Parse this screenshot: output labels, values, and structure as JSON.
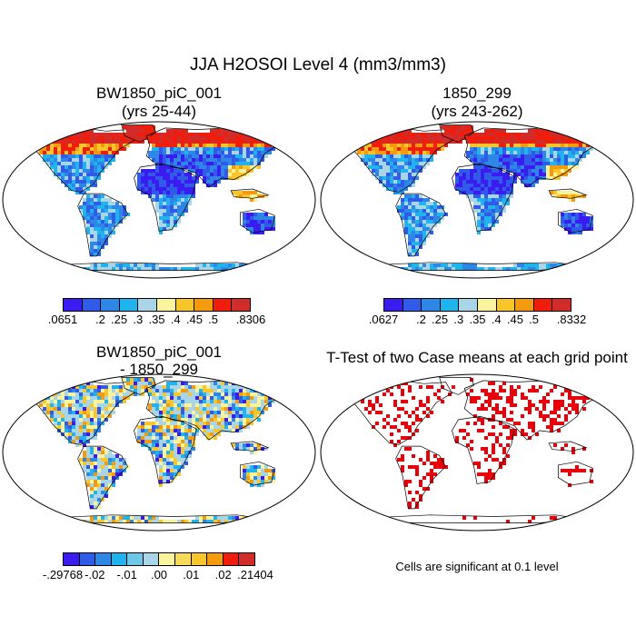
{
  "figure_title": "JJA H2OSOI Level 4 (mm3/mm3)",
  "panels": [
    {
      "line1": "BW1850_piC_001",
      "line2": "(yrs 25-44)",
      "palette": "field",
      "colorbar": {
        "labels": [
          ".0651",
          ".2",
          ".25",
          ".3",
          ".35",
          ".4",
          ".45",
          ".5",
          ".8306"
        ]
      }
    },
    {
      "line1": "1850_299",
      "line2": "(yrs 243-262)",
      "palette": "field",
      "colorbar": {
        "labels": [
          ".0627",
          ".2",
          ".25",
          ".3",
          ".35",
          ".4",
          ".45",
          ".5",
          ".8332"
        ]
      }
    },
    {
      "line1": "BW1850_piC_001",
      "line2": "- 1850_299",
      "palette": "diff",
      "colorbar": {
        "labels": [
          "-.29768",
          "-.02",
          "-.01",
          ".00",
          ".01",
          ".02",
          ".21404"
        ]
      }
    },
    {
      "line1": "T-Test of two Case means at each grid point",
      "line2": "",
      "palette": "ttest",
      "note": "Cells are significant at 0.1 level"
    }
  ],
  "colors": {
    "field": [
      "#3a1cf0",
      "#2f5be8",
      "#2e86e6",
      "#20b4ee",
      "#a8d5e8",
      "#f8f39c",
      "#f8c62a",
      "#f39a0e",
      "#ef1e0c",
      "#d12b2a"
    ],
    "diff": [
      "#3a1cf0",
      "#2f5be8",
      "#2e86e6",
      "#20b4ee",
      "#a8d5e8",
      "#f8f39c",
      "#f8c62a",
      "#f39a0e",
      "#ef1e0c",
      "#d12b2a"
    ],
    "ttest": "#e8000b"
  }
}
